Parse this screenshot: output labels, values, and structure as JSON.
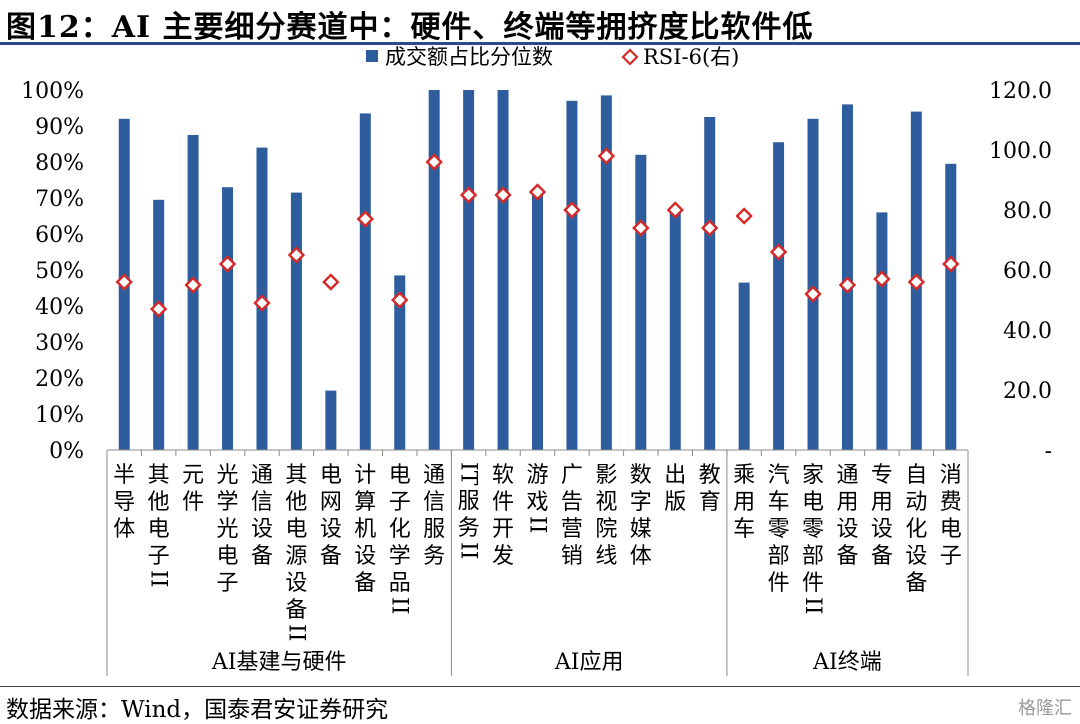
{
  "title": "图12：AI 主要细分赛道中：硬件、终端等拥挤度比软件低",
  "source": "数据来源：Wind，国泰君安证券研究",
  "watermark": "格隆汇",
  "colors": {
    "bar": "#2e5d9e",
    "marker": "#d42a2a",
    "rule": "#2b4a8a"
  },
  "chart_data": {
    "type": "bar",
    "title": "",
    "categories": [
      "半导体",
      "其他电子II",
      "元件",
      "光学光电子",
      "通信设备",
      "其他电源设备II",
      "电网设备",
      "计算机设备",
      "电子化学品II",
      "通信服务",
      "IT服务II",
      "软件开发",
      "游戏II",
      "广告营销",
      "影视院线",
      "数字媒体",
      "出版",
      "教育",
      "乘用车",
      "汽车零部件",
      "家电零部件II",
      "通用设备",
      "专用设备",
      "自动化设备",
      "消费电子"
    ],
    "groups": [
      {
        "name": "AI基建与硬件",
        "start": 0,
        "end": 9
      },
      {
        "name": "AI应用",
        "start": 10,
        "end": 17
      },
      {
        "name": "AI终端",
        "start": 18,
        "end": 24
      }
    ],
    "series": [
      {
        "name": "成交额占比分位数",
        "kind": "bar",
        "axis": "left",
        "values": [
          0.92,
          0.695,
          0.875,
          0.73,
          0.84,
          0.715,
          0.165,
          0.935,
          0.485,
          1.0,
          1.0,
          1.0,
          0.71,
          0.97,
          0.985,
          0.82,
          0.67,
          0.925,
          0.465,
          0.855,
          0.92,
          0.96,
          0.66,
          0.94,
          0.795
        ]
      },
      {
        "name": "RSI-6(右)",
        "kind": "marker",
        "axis": "right",
        "values": [
          56,
          47,
          55,
          62,
          49,
          65,
          56,
          77,
          50,
          96,
          85,
          85,
          86,
          80,
          98,
          74,
          80,
          74,
          78,
          66,
          52,
          55,
          57,
          56,
          62
        ]
      }
    ],
    "y_left": {
      "min": 0,
      "max": 1,
      "ticks": [
        "0%",
        "10%",
        "20%",
        "30%",
        "40%",
        "50%",
        "60%",
        "70%",
        "80%",
        "90%",
        "100%"
      ]
    },
    "y_right": {
      "min": 0,
      "max": 120,
      "ticks": [
        "-",
        "20.0",
        "40.0",
        "60.0",
        "80.0",
        "100.0",
        "120.0"
      ]
    },
    "legend_position": "top-center",
    "grid": false
  }
}
